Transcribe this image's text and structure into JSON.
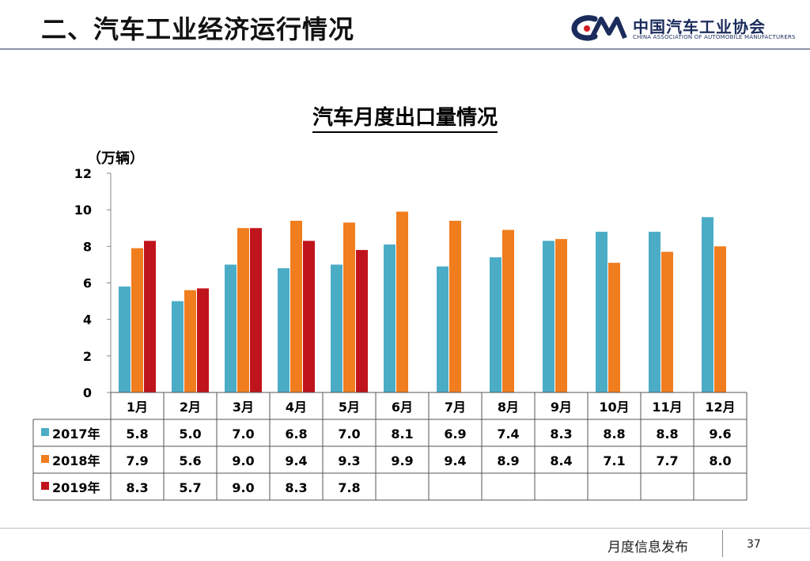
{
  "header": {
    "title": "二、汽车工业经济运行情况"
  },
  "logo": {
    "mark": "CAAM",
    "name_cn": "中国汽车工业协会",
    "name_en": "CHINA ASSOCIATION OF AUTOMOBILE MANUFACTURERS"
  },
  "footer": {
    "label": "月度信息发布",
    "page_number": "37"
  },
  "chart_data": {
    "type": "bar",
    "title": "汽车月度出口量情况",
    "unit_label": "（万辆）",
    "categories": [
      "1月",
      "2月",
      "3月",
      "4月",
      "5月",
      "6月",
      "7月",
      "8月",
      "9月",
      "10月",
      "11月",
      "12月"
    ],
    "series": [
      {
        "name": "2017年",
        "color": "#4bacc6",
        "values": [
          5.8,
          5.0,
          7.0,
          6.8,
          7.0,
          8.1,
          6.9,
          7.4,
          8.3,
          8.8,
          8.8,
          9.6
        ]
      },
      {
        "name": "2018年",
        "color": "#f07d1e",
        "values": [
          7.9,
          5.6,
          9.0,
          9.4,
          9.3,
          9.9,
          9.4,
          8.9,
          8.4,
          7.1,
          7.7,
          8.0
        ]
      },
      {
        "name": "2019年",
        "color": "#c0141c",
        "values": [
          8.3,
          5.7,
          9.0,
          8.3,
          7.8,
          null,
          null,
          null,
          null,
          null,
          null,
          null
        ]
      }
    ],
    "ylim": [
      0,
      12
    ],
    "yticks": [
      0,
      2,
      4,
      6,
      8,
      10,
      12
    ],
    "grid": false,
    "legend": "data-table"
  }
}
